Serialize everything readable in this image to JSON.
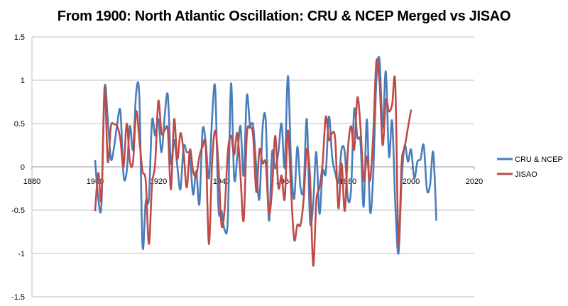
{
  "chart_data": {
    "type": "line",
    "title": "From 1900: North Atlantic Oscillation: CRU & NCEP Merged vs JISAO",
    "xlabel": "",
    "ylabel": "",
    "xlim": [
      1880,
      2020
    ],
    "ylim": [
      -1.5,
      1.5
    ],
    "xticks": [
      "1880",
      "1900",
      "1920",
      "1940",
      "1960",
      "1980",
      "2000",
      "2020"
    ],
    "xtick_values": [
      1880,
      1900,
      1920,
      1940,
      1960,
      1980,
      2000,
      2020
    ],
    "yticks": [
      "1.5",
      "1",
      "0.5",
      "0",
      "-0.5",
      "-1",
      "-1.5"
    ],
    "ytick_values": [
      1.5,
      1,
      0.5,
      0,
      -0.5,
      -1,
      -1.5
    ],
    "grid": "horizontal",
    "legend_position": "right",
    "series": [
      {
        "name": "CRU & NCEP",
        "color": "#4a7ebb",
        "x_start": 1900,
        "values": [
          0.08,
          -0.37,
          -0.43,
          0.91,
          0.55,
          0.09,
          0.23,
          0.5,
          0.64,
          -0.1,
          -0.05,
          0.47,
          0.2,
          0.86,
          0.8,
          -0.91,
          -0.4,
          -0.37,
          0.53,
          0.36,
          0.55,
          0.17,
          0.58,
          0.83,
          0.04,
          0.31,
          0.01,
          -0.26,
          0.23,
          0.17,
          0.12,
          -0.32,
          -0.05,
          -0.43,
          0.42,
          0.28,
          -0.13,
          0.55,
          0.91,
          -0.46,
          -0.51,
          -0.73,
          -0.59,
          0.96,
          -0.13,
          0.12,
          0.47,
          -0.1,
          0.82,
          0.49,
          0.48,
          0.0,
          -0.37,
          0.45,
          0.53,
          -0.62,
          0.17,
          -0.02,
          0.17,
          0.5,
          0.0,
          1.05,
          0.06,
          -0.37,
          0.23,
          -0.24,
          -0.24,
          0.55,
          -0.62,
          -0.43,
          0.17,
          -0.54,
          -0.05,
          -0.07,
          0.58,
          0.12,
          -0.07,
          -0.18,
          0.2,
          0.17,
          -0.37,
          -0.26,
          0.66,
          0.34,
          0.28,
          -0.46,
          0.55,
          -0.51,
          -0.1,
          0.99,
          1.24,
          0.45,
          1.1,
          0.12,
          0.53,
          -0.43,
          -1.0,
          -0.16,
          0.25,
          0.06,
          0.2,
          -0.13,
          0.06,
          0.09,
          0.25,
          -0.26,
          -0.21,
          0.17,
          -0.62
        ]
      },
      {
        "name": "JISAO",
        "color": "#be4b48",
        "x_start": 1900,
        "values": [
          -0.51,
          -0.07,
          -0.37,
          0.92,
          0.06,
          0.47,
          0.49,
          0.47,
          0.31,
          0.0,
          0.5,
          0.06,
          0.06,
          0.64,
          0.31,
          -0.05,
          -0.16,
          -0.89,
          -0.21,
          0.04,
          0.76,
          0.39,
          0.42,
          0.42,
          -0.26,
          0.55,
          0.09,
          0.39,
          0.17,
          -0.24,
          0.2,
          -0.05,
          -0.1,
          0.12,
          0.23,
          0.23,
          -0.89,
          0.04,
          0.42,
          0.04,
          -0.67,
          -0.48,
          0.17,
          0.36,
          0.14,
          0.39,
          -0.1,
          -0.62,
          0.36,
          0.45,
          0.36,
          -0.29,
          0.2,
          0.04,
          0.04,
          -0.54,
          -0.26,
          0.36,
          -0.24,
          -0.1,
          -0.37,
          0.42,
          -0.26,
          -0.84,
          -0.67,
          -0.67,
          -0.37,
          0.2,
          -0.1,
          -1.14,
          -0.4,
          -0.24,
          0.04,
          0.58,
          0.31,
          0.39,
          0.31,
          -0.48,
          0.04,
          -0.51,
          0.2,
          0.47,
          0.2,
          0.8,
          0.45,
          -0.16,
          0.12,
          -0.16,
          0.36,
          1.21,
          0.99,
          0.25,
          0.77,
          0.64,
          0.72,
          0.96,
          -0.89,
          0.04,
          0.23,
          0.45,
          0.66
        ]
      }
    ]
  }
}
